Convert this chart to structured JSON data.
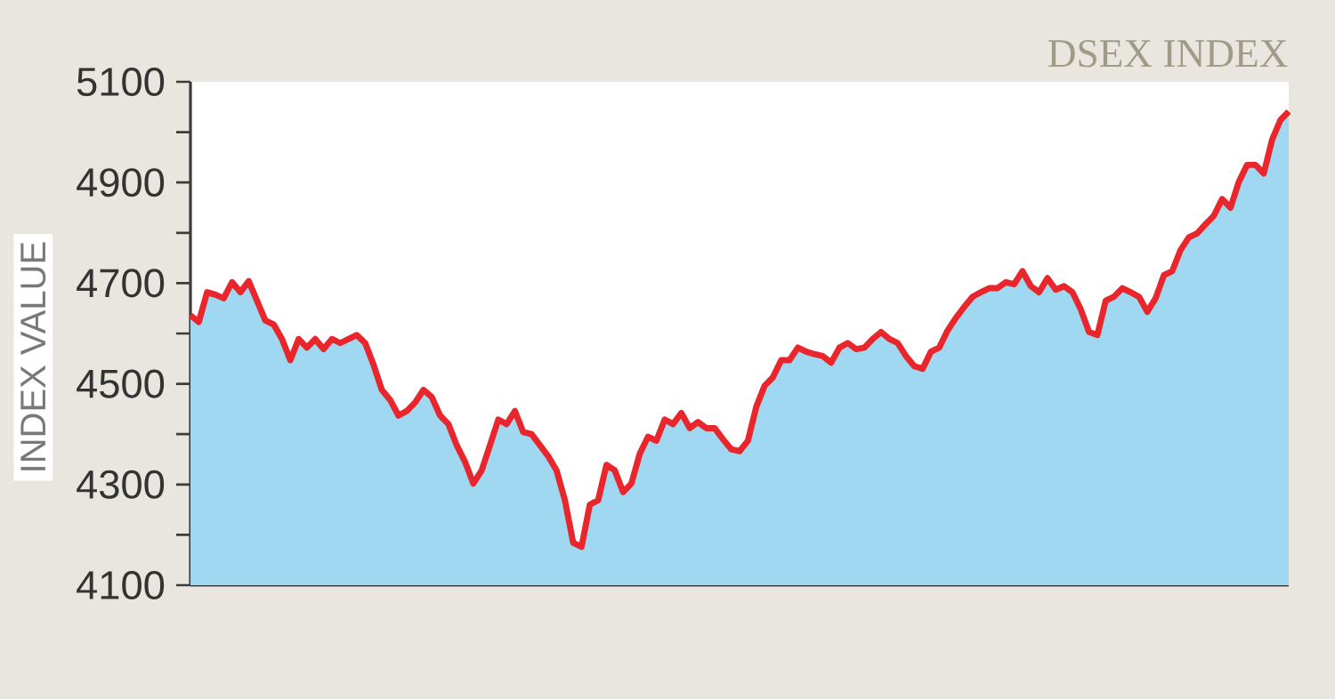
{
  "chart_data": {
    "type": "line",
    "title": "DSEX INDEX",
    "ylabel": "INDEX VALUE",
    "categories": [
      null,
      null,
      null,
      null,
      null,
      null,
      null,
      null,
      null,
      null,
      null,
      null,
      null,
      null,
      null,
      null,
      null,
      null,
      null,
      null,
      null,
      null,
      null,
      null,
      null,
      null,
      null,
      null,
      null,
      null,
      null,
      null,
      null,
      null,
      null,
      null,
      null,
      null,
      null,
      null,
      null,
      null,
      null,
      null,
      null,
      null,
      null,
      null,
      null,
      null,
      null,
      null,
      null,
      null,
      null,
      null,
      null,
      null,
      null,
      null,
      null,
      null,
      null,
      null,
      null,
      null,
      null,
      null,
      null,
      null,
      null,
      null,
      null,
      null,
      null,
      null,
      null,
      null,
      null,
      null,
      null,
      null,
      null,
      null,
      null,
      null,
      null,
      null,
      null,
      null,
      null,
      null,
      null,
      null,
      null,
      null,
      null,
      null,
      null,
      null,
      null,
      null,
      null,
      null,
      null,
      null,
      null,
      null,
      null,
      null,
      null,
      null,
      null,
      null,
      null,
      null,
      null,
      null,
      null,
      null,
      null,
      null,
      null,
      null,
      null,
      null,
      null,
      null,
      null,
      null,
      null,
      null,
      null
    ],
    "series": [
      {
        "type": "area",
        "color": "#a0d8f2",
        "values": [
          4636,
          4623,
          4682,
          4677,
          4670,
          4702,
          4682,
          4704,
          4665,
          4626,
          4618,
          4589,
          4547,
          4589,
          4572,
          4589,
          4569,
          4589,
          4581,
          4589,
          4597,
          4581,
          4538,
          4488,
          4468,
          4437,
          4446,
          4463,
          4488,
          4474,
          4437,
          4420,
          4378,
          4345,
          4302,
          4328,
          4378,
          4429,
          4420,
          4446,
          4404,
          4400,
          4378,
          4356,
          4328,
          4269,
          4184,
          4176,
          4260,
          4269,
          4339,
          4328,
          4285,
          4302,
          4361,
          4395,
          4387,
          4429,
          4420,
          4442,
          4412,
          4424,
          4412,
          4412,
          4390,
          4370,
          4366,
          4387,
          4454,
          4496,
          4513,
          4547,
          4547,
          4572,
          4564,
          4559,
          4555,
          4542,
          4572,
          4581,
          4569,
          4572,
          4589,
          4603,
          4589,
          4581,
          4555,
          4535,
          4530,
          4564,
          4572,
          4606,
          4631,
          4653,
          4673,
          4682,
          4690,
          4690,
          4702,
          4698,
          4724,
          4694,
          4682,
          4710,
          4687,
          4694,
          4682,
          4648,
          4603,
          4597,
          4665,
          4673,
          4690,
          4682,
          4673,
          4643,
          4670,
          4716,
          4724,
          4766,
          4791,
          4799,
          4817,
          4834,
          4867,
          4850,
          4901,
          4935,
          4935,
          4918,
          4985,
          5024,
          5041
        ]
      },
      {
        "color": "#e8262c",
        "values": [
          4636,
          4623,
          4682,
          4677,
          4670,
          4702,
          4682,
          4704,
          4665,
          4626,
          4618,
          4589,
          4547,
          4589,
          4572,
          4589,
          4569,
          4589,
          4581,
          4589,
          4597,
          4581,
          4538,
          4488,
          4468,
          4437,
          4446,
          4463,
          4488,
          4474,
          4437,
          4420,
          4378,
          4345,
          4302,
          4328,
          4378,
          4429,
          4420,
          4446,
          4404,
          4400,
          4378,
          4356,
          4328,
          4269,
          4184,
          4176,
          4260,
          4269,
          4339,
          4328,
          4285,
          4302,
          4361,
          4395,
          4387,
          4429,
          4420,
          4442,
          4412,
          4424,
          4412,
          4412,
          4390,
          4370,
          4366,
          4387,
          4454,
          4496,
          4513,
          4547,
          4547,
          4572,
          4564,
          4559,
          4555,
          4542,
          4572,
          4581,
          4569,
          4572,
          4589,
          4603,
          4589,
          4581,
          4555,
          4535,
          4530,
          4564,
          4572,
          4606,
          4631,
          4653,
          4673,
          4682,
          4690,
          4690,
          4702,
          4698,
          4724,
          4694,
          4682,
          4710,
          4687,
          4694,
          4682,
          4648,
          4603,
          4597,
          4665,
          4673,
          4690,
          4682,
          4673,
          4643,
          4670,
          4716,
          4724,
          4766,
          4791,
          4799,
          4817,
          4834,
          4867,
          4850,
          4901,
          4935,
          4935,
          4918,
          4985,
          5024,
          5041
        ]
      }
    ],
    "ylim": [
      4100,
      5100
    ],
    "yticks": [
      4100,
      {
        "value": 4200,
        "label": null
      },
      4300,
      {
        "value": 4400,
        "label": null
      },
      4500,
      {
        "value": 4600,
        "label": null
      },
      4700,
      {
        "value": 4800,
        "label": null
      },
      4900,
      {
        "value": 5000,
        "label": null
      },
      5100
    ],
    "tick_labels": "y",
    "grid": false
  }
}
